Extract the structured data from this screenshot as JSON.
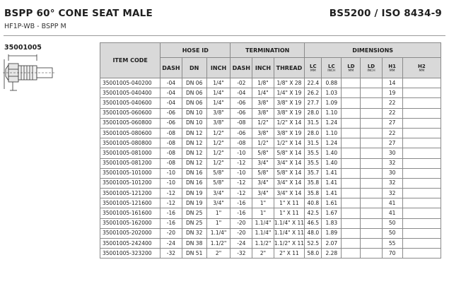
{
  "header": {
    "title": "BSPP 60° CONE SEAT MALE",
    "subtitle": "HF1P-WB - BSPP M",
    "standard": "BS5200 / ISO 8434-9",
    "part_code": "35001005"
  },
  "table": {
    "item_code_label": "ITEM CODE",
    "groups": {
      "hose_id": "HOSE ID",
      "termination": "TERMINATION",
      "dimensions": "DIMENSIONS"
    },
    "columns": {
      "hose_dash": "DASH",
      "hose_dn": "DN",
      "hose_inch": "INCH",
      "term_dash": "DASH",
      "term_inch": "INCH",
      "term_thread": "THREAD",
      "lc_mm": "LC",
      "lc_mm_unit": "MM",
      "lc_inch": "LC",
      "lc_inch_unit": "INCH",
      "ld_mm": "LD",
      "ld_mm_unit": "MM",
      "ld_inch": "LD",
      "ld_inch_unit": "INCH",
      "h1_mm": "H1",
      "h1_mm_unit": "MM",
      "h2_mm": "H2",
      "h2_mm_unit": "MM"
    },
    "rows": [
      {
        "code": "35001005-040200",
        "hose_dash": "-04",
        "dn": "DN 06",
        "hose_inch": "1/4\"",
        "term_dash": "-02",
        "term_inch": "1/8\"",
        "thread": "1/8\" X 28",
        "lc_mm": "22.4",
        "lc_inch": "0.88",
        "ld_mm": "",
        "ld_inch": "",
        "h1": "14",
        "h2": ""
      },
      {
        "code": "35001005-040400",
        "hose_dash": "-04",
        "dn": "DN 06",
        "hose_inch": "1/4\"",
        "term_dash": "-04",
        "term_inch": "1/4\"",
        "thread": "1/4\" X 19",
        "lc_mm": "26.2",
        "lc_inch": "1.03",
        "ld_mm": "",
        "ld_inch": "",
        "h1": "19",
        "h2": ""
      },
      {
        "code": "35001005-040600",
        "hose_dash": "-04",
        "dn": "DN 06",
        "hose_inch": "1/4\"",
        "term_dash": "-06",
        "term_inch": "3/8\"",
        "thread": "3/8\" X 19",
        "lc_mm": "27.7",
        "lc_inch": "1.09",
        "ld_mm": "",
        "ld_inch": "",
        "h1": "22",
        "h2": ""
      },
      {
        "code": "35001005-060600",
        "hose_dash": "-06",
        "dn": "DN 10",
        "hose_inch": "3/8\"",
        "term_dash": "-06",
        "term_inch": "3/8\"",
        "thread": "3/8\" X 19",
        "lc_mm": "28.0",
        "lc_inch": "1.10",
        "ld_mm": "",
        "ld_inch": "",
        "h1": "22",
        "h2": ""
      },
      {
        "code": "35001005-060800",
        "hose_dash": "-06",
        "dn": "DN 10",
        "hose_inch": "3/8\"",
        "term_dash": "-08",
        "term_inch": "1/2\"",
        "thread": "1/2\" X 14",
        "lc_mm": "31.5",
        "lc_inch": "1.24",
        "ld_mm": "",
        "ld_inch": "",
        "h1": "27",
        "h2": ""
      },
      {
        "code": "35001005-080600",
        "hose_dash": "-08",
        "dn": "DN 12",
        "hose_inch": "1/2\"",
        "term_dash": "-06",
        "term_inch": "3/8\"",
        "thread": "3/8\" X 19",
        "lc_mm": "28.0",
        "lc_inch": "1.10",
        "ld_mm": "",
        "ld_inch": "",
        "h1": "22",
        "h2": ""
      },
      {
        "code": "35001005-080800",
        "hose_dash": "-08",
        "dn": "DN 12",
        "hose_inch": "1/2\"",
        "term_dash": "-08",
        "term_inch": "1/2\"",
        "thread": "1/2\" X 14",
        "lc_mm": "31.5",
        "lc_inch": "1.24",
        "ld_mm": "",
        "ld_inch": "",
        "h1": "27",
        "h2": ""
      },
      {
        "code": "35001005-081000",
        "hose_dash": "-08",
        "dn": "DN 12",
        "hose_inch": "1/2\"",
        "term_dash": "-10",
        "term_inch": "5/8\"",
        "thread": "5/8\" X 14",
        "lc_mm": "35.5",
        "lc_inch": "1.40",
        "ld_mm": "",
        "ld_inch": "",
        "h1": "30",
        "h2": ""
      },
      {
        "code": "35001005-081200",
        "hose_dash": "-08",
        "dn": "DN 12",
        "hose_inch": "1/2\"",
        "term_dash": "-12",
        "term_inch": "3/4\"",
        "thread": "3/4\" X 14",
        "lc_mm": "35.5",
        "lc_inch": "1.40",
        "ld_mm": "",
        "ld_inch": "",
        "h1": "32",
        "h2": ""
      },
      {
        "code": "35001005-101000",
        "hose_dash": "-10",
        "dn": "DN 16",
        "hose_inch": "5/8\"",
        "term_dash": "-10",
        "term_inch": "5/8\"",
        "thread": "5/8\" X 14",
        "lc_mm": "35.7",
        "lc_inch": "1.41",
        "ld_mm": "",
        "ld_inch": "",
        "h1": "30",
        "h2": ""
      },
      {
        "code": "35001005-101200",
        "hose_dash": "-10",
        "dn": "DN 16",
        "hose_inch": "5/8\"",
        "term_dash": "-12",
        "term_inch": "3/4\"",
        "thread": "3/4\" X 14",
        "lc_mm": "35.8",
        "lc_inch": "1.41",
        "ld_mm": "",
        "ld_inch": "",
        "h1": "32",
        "h2": ""
      },
      {
        "code": "35001005-121200",
        "hose_dash": "-12",
        "dn": "DN 19",
        "hose_inch": "3/4\"",
        "term_dash": "-12",
        "term_inch": "3/4\"",
        "thread": "3/4\" X 14",
        "lc_mm": "35.8",
        "lc_inch": "1.41",
        "ld_mm": "",
        "ld_inch": "",
        "h1": "32",
        "h2": ""
      },
      {
        "code": "35001005-121600",
        "hose_dash": "-12",
        "dn": "DN 19",
        "hose_inch": "3/4\"",
        "term_dash": "-16",
        "term_inch": "1\"",
        "thread": "1\" X 11",
        "lc_mm": "40.8",
        "lc_inch": "1.61",
        "ld_mm": "",
        "ld_inch": "",
        "h1": "41",
        "h2": ""
      },
      {
        "code": "35001005-161600",
        "hose_dash": "-16",
        "dn": "DN 25",
        "hose_inch": "1\"",
        "term_dash": "-16",
        "term_inch": "1\"",
        "thread": "1\" X 11",
        "lc_mm": "42.5",
        "lc_inch": "1.67",
        "ld_mm": "",
        "ld_inch": "",
        "h1": "41",
        "h2": ""
      },
      {
        "code": "35001005-162000",
        "hose_dash": "-16",
        "dn": "DN 25",
        "hose_inch": "1\"",
        "term_dash": "-20",
        "term_inch": "1.1/4\"",
        "thread": "1.1/4\" X 11",
        "lc_mm": "46.5",
        "lc_inch": "1.83",
        "ld_mm": "",
        "ld_inch": "",
        "h1": "50",
        "h2": ""
      },
      {
        "code": "35001005-202000",
        "hose_dash": "-20",
        "dn": "DN 32",
        "hose_inch": "1.1/4\"",
        "term_dash": "-20",
        "term_inch": "1.1/4\"",
        "thread": "1.1/4\" X 11",
        "lc_mm": "48.0",
        "lc_inch": "1.89",
        "ld_mm": "",
        "ld_inch": "",
        "h1": "50",
        "h2": ""
      },
      {
        "code": "35001005-242400",
        "hose_dash": "-24",
        "dn": "DN 38",
        "hose_inch": "1.1/2\"",
        "term_dash": "-24",
        "term_inch": "1.1/2\"",
        "thread": "1.1/2\" X 11",
        "lc_mm": "52.5",
        "lc_inch": "2.07",
        "ld_mm": "",
        "ld_inch": "",
        "h1": "55",
        "h2": ""
      },
      {
        "code": "35001005-323200",
        "hose_dash": "-32",
        "dn": "DN 51",
        "hose_inch": "2\"",
        "term_dash": "-32",
        "term_inch": "2\"",
        "thread": "2\" X 11",
        "lc_mm": "58.0",
        "lc_inch": "2.28",
        "ld_mm": "",
        "ld_inch": "",
        "h1": "70",
        "h2": ""
      }
    ]
  }
}
